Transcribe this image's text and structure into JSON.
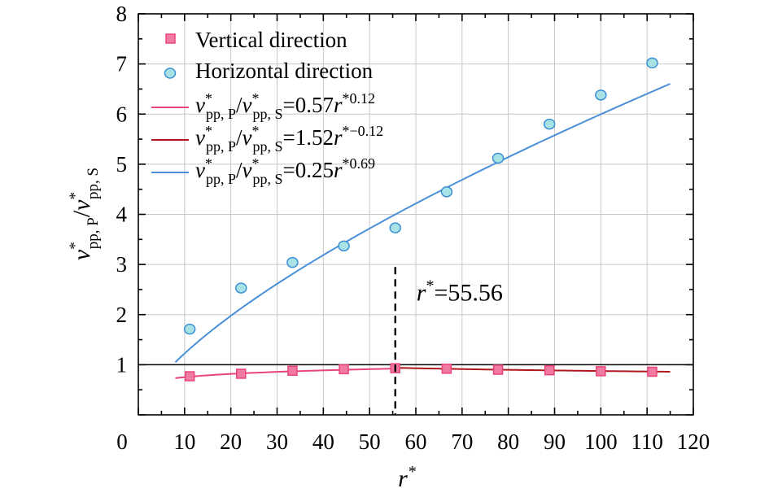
{
  "chart_data": {
    "type": "scatter",
    "xlim": [
      0,
      120
    ],
    "ylim": [
      0,
      8
    ],
    "x_major_ticks": [
      0,
      10,
      20,
      30,
      40,
      50,
      60,
      70,
      80,
      90,
      100,
      110,
      120
    ],
    "y_major_ticks": [
      1,
      2,
      3,
      4,
      5,
      6,
      7,
      8
    ],
    "zero_label": "0",
    "grid": true,
    "legend_position": "top-left",
    "xlabel": "r*",
    "ylabel": "v*pp, P/v*pp, S",
    "series": [
      {
        "name": "Vertical direction",
        "kind": "markers",
        "marker": "square",
        "color": "#e8457a",
        "fill": "#f07aa0",
        "x": [
          11.11,
          22.22,
          33.33,
          44.44,
          55.56,
          66.67,
          77.78,
          88.89,
          100,
          111.11
        ],
        "y": [
          0.77,
          0.82,
          0.88,
          0.91,
          0.93,
          0.92,
          0.9,
          0.89,
          0.87,
          0.86
        ]
      },
      {
        "name": "Horizontal direction",
        "kind": "markers",
        "marker": "circle",
        "color": "#3a8fd6",
        "fill": "#a8e2e4",
        "x": [
          11.11,
          22.22,
          33.33,
          44.44,
          55.56,
          66.67,
          77.78,
          88.89,
          100,
          111.11
        ],
        "y": [
          1.71,
          2.53,
          3.04,
          3.37,
          3.73,
          4.45,
          5.12,
          5.8,
          6.38,
          7.02
        ]
      },
      {
        "name": "v*pp, P/v*pp, S=0.57r*0.12",
        "kind": "fit",
        "color": "#e8457a",
        "coef": 0.57,
        "exponent": 0.12,
        "domain": [
          8,
          55.56
        ]
      },
      {
        "name": "v*pp, P/v*pp, S=1.52r*−0.12",
        "kind": "fit",
        "color": "#b0181e",
        "coef": 1.52,
        "exponent": -0.12,
        "domain": [
          55.56,
          115
        ]
      },
      {
        "name": "v*pp, P/v*pp, S=0.25r*0.69",
        "kind": "fit",
        "color": "#4a90d9",
        "coef": 0.25,
        "exponent": 0.69,
        "domain": [
          8,
          115
        ]
      }
    ],
    "reference_line": {
      "y": 1
    },
    "vertical_marker": {
      "x": 55.56,
      "y_top": 2.95,
      "label_prefix": "r",
      "label_star": "*",
      "label_value": "=55.56"
    }
  },
  "legend": {
    "vertical": "Vertical direction",
    "horizontal": "Horizontal direction",
    "fits": [
      {
        "coef": "=0.57",
        "exp": "0.12"
      },
      {
        "coef": "=1.52",
        "exp": "−0.12"
      },
      {
        "coef": "=0.25",
        "exp": "0.69"
      }
    ],
    "v": "v",
    "star": "*",
    "sub_p": "pp, P",
    "slash": "/",
    "sub_s": "pp, S",
    "r": "r"
  },
  "axes": {
    "xlabel_main": "r",
    "xlabel_star": "*",
    "ylabel_v": "v",
    "ylabel_star": "*",
    "ylabel_sub_p": "pp, P",
    "ylabel_slash": "/",
    "ylabel_sub_s": "pp, S"
  },
  "colors": {
    "pink": "#e8457a",
    "dark_red": "#b0181e",
    "blue": "#4a90d9",
    "circle_fill": "#a8e2e4",
    "square_fill": "#f07aa0"
  }
}
